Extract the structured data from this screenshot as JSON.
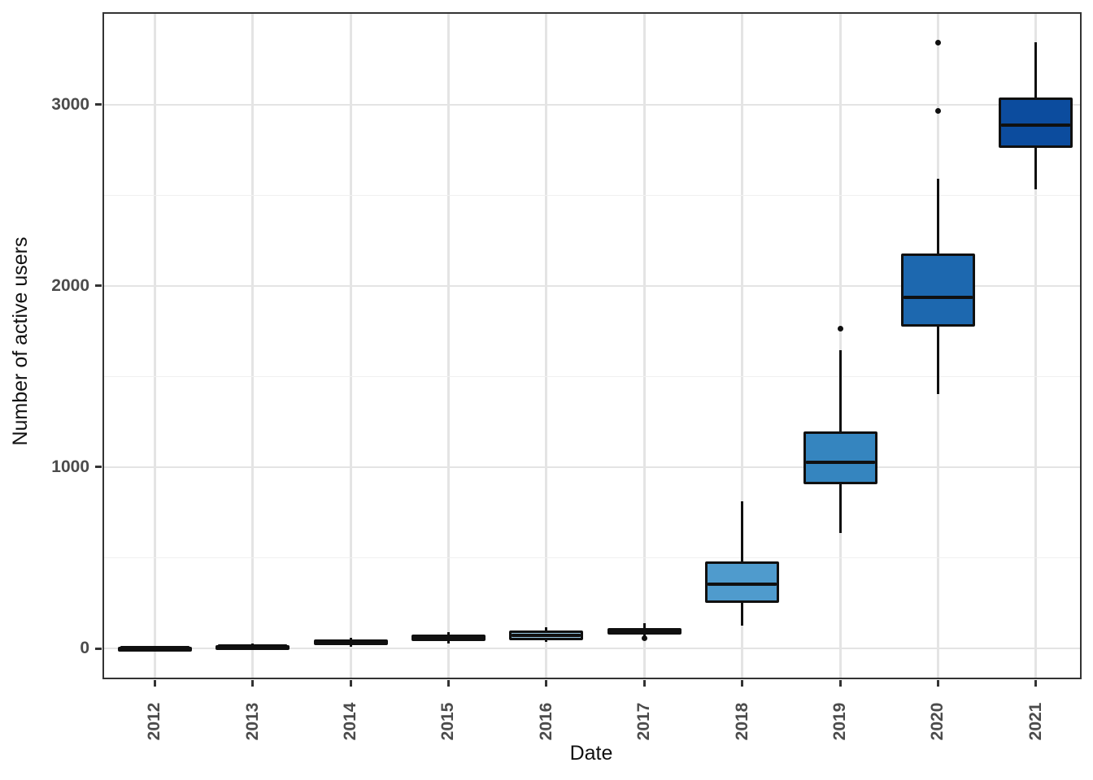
{
  "chart_data": {
    "type": "boxplot",
    "title": "",
    "xlabel": "Date",
    "ylabel": "Number of active users",
    "categories": [
      "2012",
      "2013",
      "2014",
      "2015",
      "2016",
      "2017",
      "2018",
      "2019",
      "2020",
      "2021"
    ],
    "y_ticks": [
      0,
      1000,
      2000,
      3000
    ],
    "y_tick_labels": [
      "0",
      "1000",
      "2000",
      "3000"
    ],
    "y_minor_gridlines": [
      500,
      1500,
      2500
    ],
    "ylim": [
      -170,
      3510
    ],
    "grid": "on",
    "legend": "none",
    "boxes": [
      {
        "category": "2012",
        "whisker_low": 0,
        "q1": 1,
        "median": 4,
        "q3": 9,
        "whisker_high": 13,
        "outliers": [],
        "fill": "#f7fbff"
      },
      {
        "category": "2013",
        "whisker_low": 3,
        "q1": 7,
        "median": 13,
        "q3": 20,
        "whisker_high": 26,
        "outliers": [],
        "fill": "#e3eef9"
      },
      {
        "category": "2014",
        "whisker_low": 10,
        "q1": 20,
        "median": 33,
        "q3": 48,
        "whisker_high": 58,
        "outliers": [],
        "fill": "#cfe1f2"
      },
      {
        "category": "2015",
        "whisker_low": 28,
        "q1": 40,
        "median": 57,
        "q3": 75,
        "whisker_high": 90,
        "outliers": [],
        "fill": "#b0d2e7"
      },
      {
        "category": "2016",
        "whisker_low": 35,
        "q1": 46,
        "median": 70,
        "q3": 98,
        "whisker_high": 115,
        "outliers": [],
        "fill": "#94c4df"
      },
      {
        "category": "2017",
        "whisker_low": 68,
        "q1": 77,
        "median": 95,
        "q3": 114,
        "whisker_high": 140,
        "outliers": [
          56
        ],
        "fill": "#6aaed6"
      },
      {
        "category": "2018",
        "whisker_low": 125,
        "q1": 250,
        "median": 355,
        "q3": 478,
        "whisker_high": 810,
        "outliers": [],
        "fill": "#4f9bcd"
      },
      {
        "category": "2019",
        "whisker_low": 635,
        "q1": 905,
        "median": 1025,
        "q3": 1195,
        "whisker_high": 1645,
        "outliers": [
          1765
        ],
        "fill": "#3585bf"
      },
      {
        "category": "2020",
        "whisker_low": 1405,
        "q1": 1775,
        "median": 1935,
        "q3": 2180,
        "whisker_high": 2590,
        "outliers": [
          2965,
          3340
        ],
        "fill": "#1d68af"
      },
      {
        "category": "2021",
        "whisker_low": 2535,
        "q1": 2760,
        "median": 2885,
        "q3": 3040,
        "whisker_high": 3345,
        "outliers": [],
        "fill": "#0c4c9e"
      }
    ],
    "colors": {
      "box_stroke": "#101010",
      "panel_border": "#333333",
      "major_gridline": "#e4e4e4",
      "minor_gridline": "#f0f0f0",
      "tick_label": "#4b4b4b",
      "axis_title": "#111111"
    }
  }
}
